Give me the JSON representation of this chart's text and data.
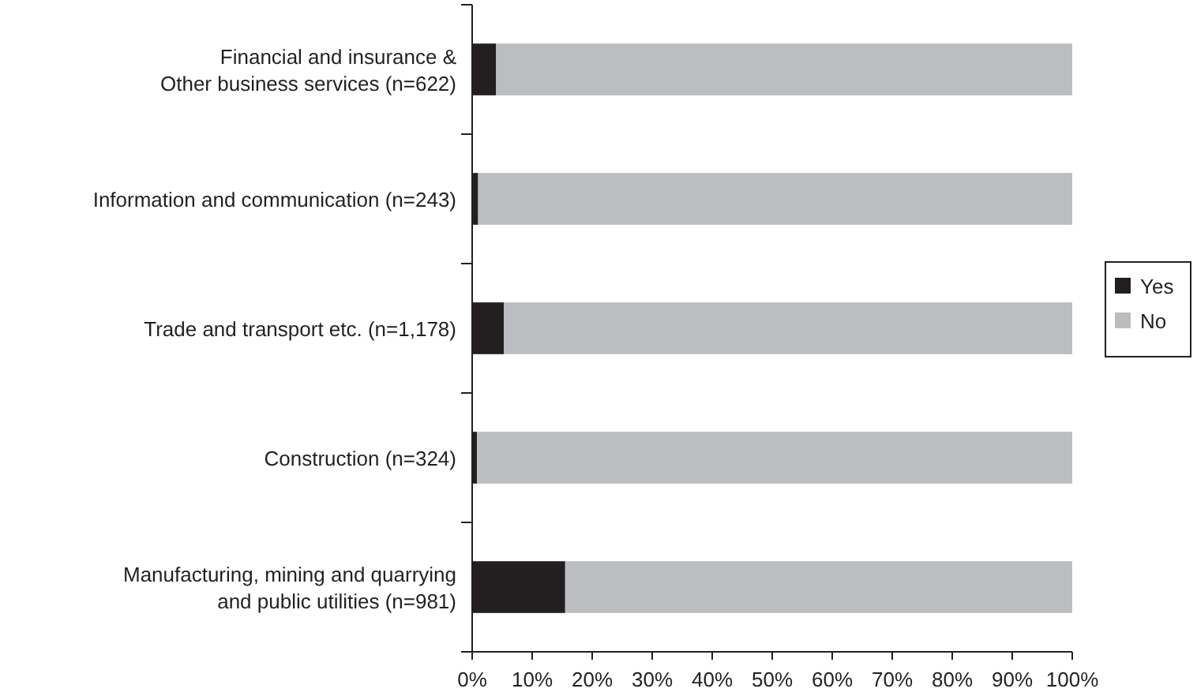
{
  "chart_data": {
    "type": "bar",
    "orientation": "horizontal",
    "stacked": true,
    "categories": [
      "Financial and insurance &\nOther business services (n=622)",
      "Information and communication (n=243)",
      "Trade and transport etc. (n=1,178)",
      "Construction (n=324)",
      "Manufacturing, mining and quarrying\nand public utilities (n=981)"
    ],
    "series": [
      {
        "name": "Yes",
        "color": "#231f20",
        "values": [
          4,
          1,
          5.3,
          0.8,
          15.5
        ]
      },
      {
        "name": "No",
        "color": "#bcbdc0",
        "values": [
          96,
          99,
          94.7,
          99.2,
          84.5
        ]
      }
    ],
    "xlim": [
      0,
      100
    ],
    "xticks": [
      {
        "value": 0,
        "label": "0%"
      },
      {
        "value": 10,
        "label": "10%"
      },
      {
        "value": 20,
        "label": "20%"
      },
      {
        "value": 30,
        "label": "30%"
      },
      {
        "value": 40,
        "label": "40%"
      },
      {
        "value": 50,
        "label": "50%"
      },
      {
        "value": 60,
        "label": "60%"
      },
      {
        "value": 70,
        "label": "70%"
      },
      {
        "value": 80,
        "label": "80%"
      },
      {
        "value": 90,
        "label": "90%"
      },
      {
        "value": 100,
        "label": "100%"
      }
    ],
    "legend": "right",
    "grid": false
  }
}
